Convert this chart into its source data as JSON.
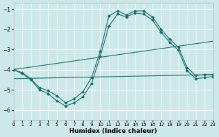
{
  "xlabel": "Humidex (Indice chaleur)",
  "bg_color": "#cce8e8",
  "grid_color": "#ffffff",
  "line_color": "#1a6b6b",
  "xlim": [
    0,
    23
  ],
  "ylim": [
    -6.5,
    -0.7
  ],
  "yticks": [
    -1,
    -2,
    -3,
    -4,
    -5,
    -6
  ],
  "xticks": [
    0,
    1,
    2,
    3,
    4,
    5,
    6,
    7,
    8,
    9,
    10,
    11,
    12,
    13,
    14,
    15,
    16,
    17,
    18,
    19,
    20,
    21,
    22,
    23
  ],
  "line1_x": [
    0,
    1,
    2,
    3,
    4,
    5,
    6,
    7,
    8,
    9,
    10,
    11,
    12,
    13,
    14,
    15,
    16,
    17,
    18,
    19,
    20,
    21,
    22,
    23
  ],
  "line1_y": [
    -4.0,
    -4.2,
    -4.5,
    -5.0,
    -5.2,
    -5.55,
    -5.8,
    -5.65,
    -5.35,
    -4.7,
    -3.35,
    -1.85,
    -1.25,
    -1.4,
    -1.2,
    -1.25,
    -1.55,
    -2.15,
    -2.65,
    -3.05,
    -4.05,
    -4.45,
    -4.4,
    -4.35
  ],
  "line2_x": [
    0,
    1,
    2,
    3,
    4,
    5,
    6,
    7,
    8,
    9,
    10,
    11,
    12,
    13,
    14,
    15,
    16,
    17,
    18,
    19,
    20,
    21,
    22,
    23
  ],
  "line2_y": [
    -4.0,
    -4.15,
    -4.45,
    -4.9,
    -5.05,
    -5.3,
    -5.65,
    -5.45,
    -5.1,
    -4.4,
    -3.1,
    -1.35,
    -1.1,
    -1.3,
    -1.1,
    -1.1,
    -1.4,
    -2.0,
    -2.5,
    -2.9,
    -3.9,
    -4.3,
    -4.25,
    -4.25
  ],
  "line3_x": [
    0,
    23
  ],
  "line3_y": [
    -4.0,
    -2.6
  ],
  "line4_x": [
    0,
    23
  ],
  "line4_y": [
    -4.45,
    -4.25
  ]
}
